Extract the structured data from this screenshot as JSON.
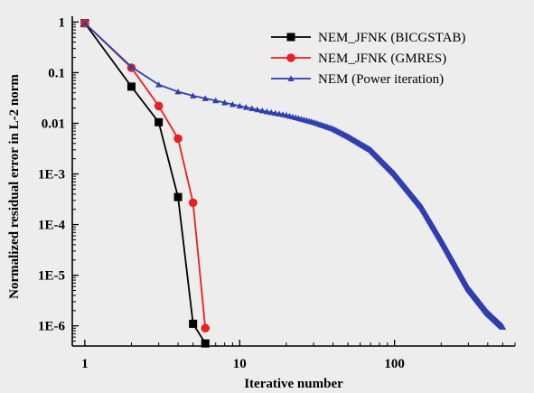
{
  "chart_data": {
    "type": "line",
    "title": "",
    "xlabel": "Iterative number",
    "ylabel": "Normalized residual error in L-2 norm",
    "xscale": "log",
    "yscale": "log",
    "xlim": [
      0.83,
      600
    ],
    "ylim": [
      4e-07,
      1.3
    ],
    "grid": false,
    "legend_position": "top-right",
    "x_ticks": [
      {
        "value": 1,
        "label": "1"
      },
      {
        "value": 10,
        "label": "10"
      },
      {
        "value": 100,
        "label": "100"
      }
    ],
    "y_ticks": [
      {
        "value": 1,
        "label": "1"
      },
      {
        "value": 0.1,
        "label": "0.1"
      },
      {
        "value": 0.01,
        "label": "0.01"
      },
      {
        "value": 0.001,
        "label": "1E-3"
      },
      {
        "value": 0.0001,
        "label": "1E-4"
      },
      {
        "value": 1e-05,
        "label": "1E-5"
      },
      {
        "value": 1e-06,
        "label": "1E-6"
      }
    ],
    "series": [
      {
        "name": "NEM_JFNK (BICGSTAB)",
        "color": "#000000",
        "marker": "square",
        "x": [
          1,
          2,
          3,
          4,
          5,
          6
        ],
        "y": [
          0.95,
          0.053,
          0.0105,
          0.00035,
          1.1e-06,
          4.5e-07
        ]
      },
      {
        "name": "NEM_JFNK (GMRES)",
        "color": "#e8201e",
        "marker": "circle",
        "x": [
          1,
          2,
          3,
          4,
          5,
          6
        ],
        "y": [
          0.95,
          0.125,
          0.022,
          0.005,
          0.00027,
          9e-07
        ]
      },
      {
        "name": "NEM (Power iteration)",
        "color": "#2f3fb0",
        "marker": "triangle",
        "x": [
          1,
          2,
          3,
          4,
          5,
          7,
          10,
          15,
          20,
          30,
          40,
          50,
          70,
          100,
          150,
          200,
          300,
          400,
          500
        ],
        "y": [
          0.95,
          0.13,
          0.058,
          0.042,
          0.035,
          0.028,
          0.022,
          0.017,
          0.0145,
          0.0105,
          0.0078,
          0.0055,
          0.003,
          0.001,
          0.00022,
          5e-05,
          5.5e-06,
          1.8e-06,
          9.5e-07
        ]
      }
    ]
  }
}
